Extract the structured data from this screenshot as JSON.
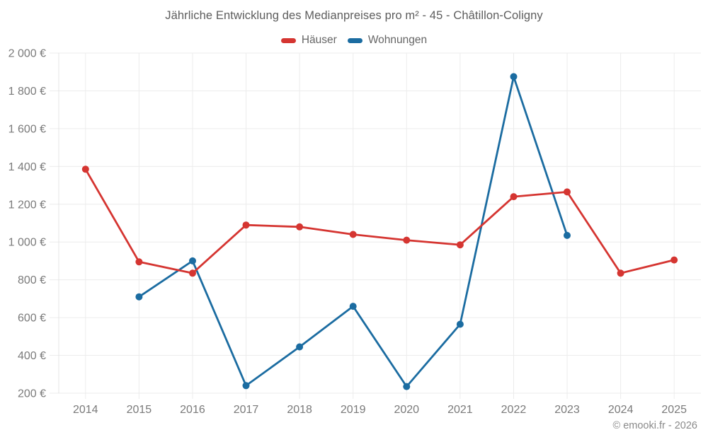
{
  "header": {
    "title": "Jährliche Entwicklung des Medianpreises pro m² - 45 - Châtillon-Coligny"
  },
  "legend": {
    "items": [
      {
        "label": "Häuser",
        "color": "#d53531"
      },
      {
        "label": "Wohnungen",
        "color": "#1b6ca1"
      }
    ]
  },
  "footer": {
    "copyright": "© emooki.fr - 2026"
  },
  "chart_data": {
    "type": "line",
    "title": "Jährliche Entwicklung des Medianpreises pro m² - 45 - Châtillon-Coligny",
    "categories": [
      "2014",
      "2015",
      "2016",
      "2017",
      "2018",
      "2019",
      "2020",
      "2021",
      "2022",
      "2023",
      "2024",
      "2025"
    ],
    "series": [
      {
        "name": "Häuser",
        "color": "#d53531",
        "values": [
          1385,
          895,
          835,
          1090,
          1080,
          1040,
          1010,
          985,
          1240,
          1265,
          835,
          905
        ]
      },
      {
        "name": "Wohnungen",
        "color": "#1b6ca1",
        "values": [
          null,
          710,
          900,
          240,
          445,
          660,
          235,
          565,
          1875,
          1035,
          null,
          null
        ]
      }
    ],
    "y_ticks": [
      {
        "value": 2000,
        "label": "2 000 €"
      },
      {
        "value": 1800,
        "label": "1 800 €"
      },
      {
        "value": 1600,
        "label": "1 600 €"
      },
      {
        "value": 1400,
        "label": "1 400 €"
      },
      {
        "value": 1200,
        "label": "1 200 €"
      },
      {
        "value": 1000,
        "label": "1 000 €"
      },
      {
        "value": 800,
        "label": "800 €"
      },
      {
        "value": 600,
        "label": "600 €"
      },
      {
        "value": 400,
        "label": "400 €"
      },
      {
        "value": 200,
        "label": "200 €"
      }
    ],
    "ylim": [
      200,
      2000
    ],
    "xlabel": "",
    "ylabel": "",
    "grid": true,
    "legend_position": "top",
    "point_radius": 5,
    "line_width": 2.8
  },
  "style": {
    "background": "#ffffff",
    "grid_color": "#ececec",
    "axis_line_color": "#e4e4e4",
    "axis_text_color": "#7a7a7a",
    "title_color": "#5d5d5d",
    "legend_text_color": "#666666",
    "copyright_color": "#8a8a8a"
  }
}
